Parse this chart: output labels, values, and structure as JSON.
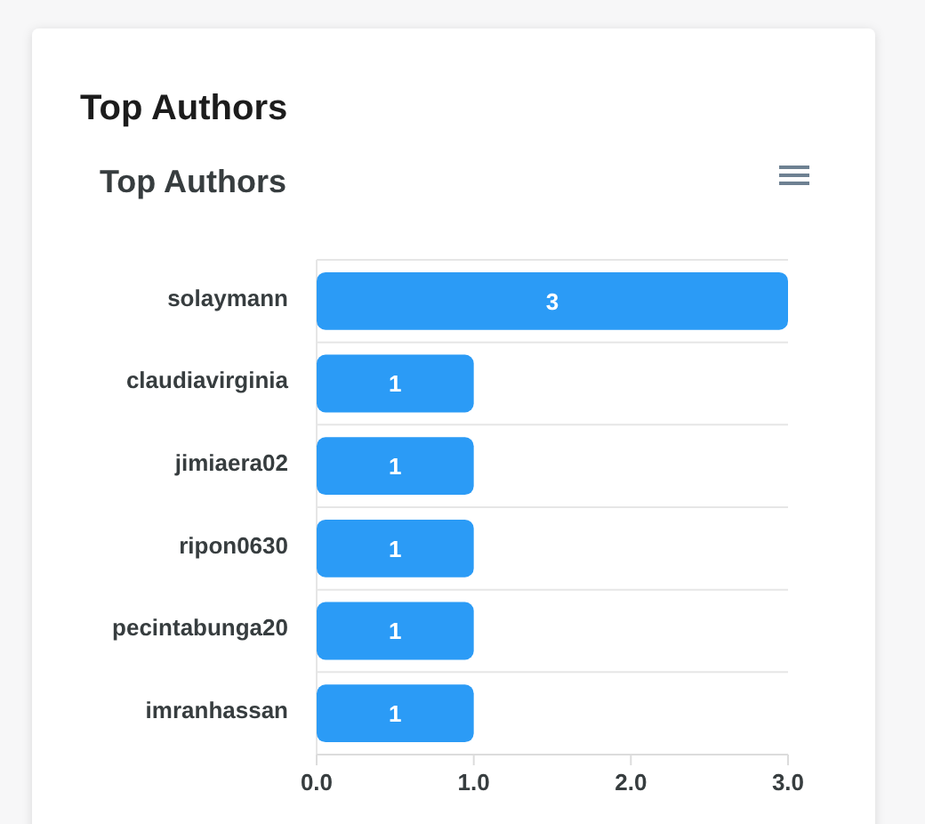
{
  "chart_data": {
    "type": "bar",
    "orientation": "horizontal",
    "title": "Top Authors",
    "subtitle": "Top Authors",
    "categories": [
      "solaymann",
      "claudiavirginia",
      "jimiaera02",
      "ripon0630",
      "pecintabunga20",
      "imranhassan"
    ],
    "values": [
      3,
      1,
      1,
      1,
      1,
      1
    ],
    "color": "#2b9bf6",
    "xlim": [
      0,
      3
    ],
    "xticks": [
      {
        "value": 0,
        "label": "0.0"
      },
      {
        "value": 1,
        "label": "1.0"
      },
      {
        "value": 2,
        "label": "2.0"
      },
      {
        "value": 3,
        "label": "3.0"
      }
    ],
    "grid": "y",
    "data_labels": true
  }
}
